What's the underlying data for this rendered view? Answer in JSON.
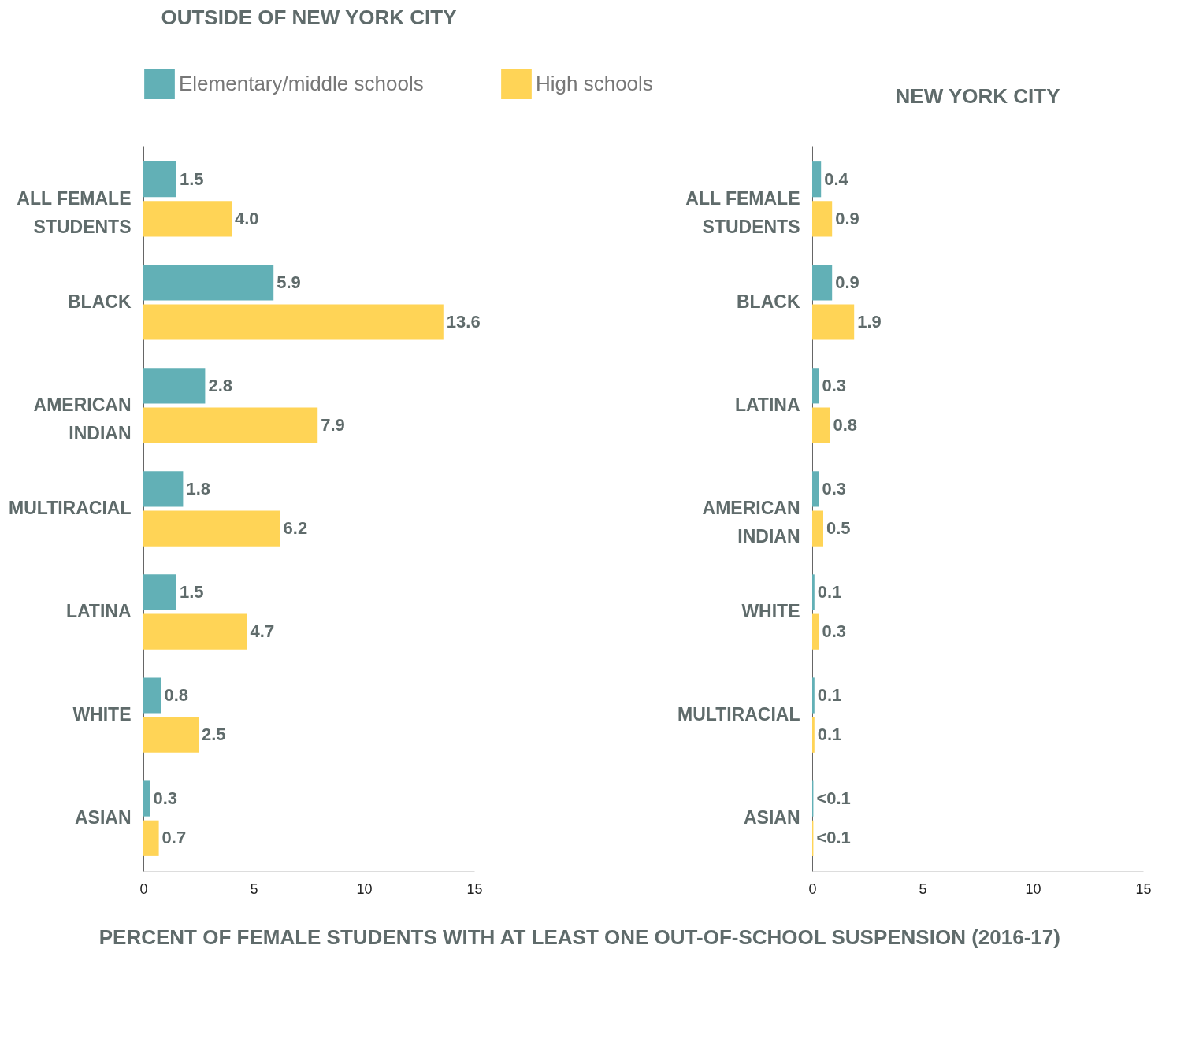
{
  "chart_data": [
    {
      "type": "bar",
      "orientation": "horizontal",
      "title": "OUTSIDE OF NEW YORK CITY",
      "xlabel": "PERCENT OF FEMALE STUDENTS WITH AT LEAST ONE OUT-OF-SCHOOL SUSPENSION (2016-17)",
      "categories": [
        "ALL FEMALE STUDENTS",
        "BLACK",
        "AMERICAN INDIAN",
        "MULTIRACIAL",
        "LATINA",
        "WHITE",
        "ASIAN"
      ],
      "xlim": [
        0,
        15
      ],
      "xticks": [
        0,
        5,
        10,
        15
      ],
      "legend": "top",
      "series": [
        {
          "name": "Elementary/middle  schools",
          "color": "#62b0b6",
          "values": [
            1.5,
            5.9,
            2.8,
            1.8,
            1.5,
            0.8,
            0.3
          ],
          "value_labels": [
            "1.5",
            "5.9",
            "2.8",
            "1.8",
            "1.5",
            "0.8",
            "0.3"
          ]
        },
        {
          "name": "High schools",
          "color": "#ffd456",
          "values": [
            4.0,
            13.6,
            7.9,
            6.2,
            4.7,
            2.5,
            0.7
          ],
          "value_labels": [
            "4.0",
            "13.6",
            "7.9",
            "6.2",
            "4.7",
            "2.5",
            "0.7"
          ]
        }
      ]
    },
    {
      "type": "bar",
      "orientation": "horizontal",
      "title": "NEW YORK CITY",
      "categories": [
        "ALL FEMALE STUDENTS",
        "BLACK",
        "LATINA",
        "AMERICAN INDIAN",
        "WHITE",
        "MULTIRACIAL",
        "ASIAN"
      ],
      "xlim": [
        0,
        15
      ],
      "xticks": [
        0,
        5,
        10,
        15
      ],
      "series": [
        {
          "color": "#62b0b6",
          "values": [
            0.4,
            0.9,
            0.3,
            0.3,
            0.1,
            0.1,
            0.05
          ],
          "value_labels": [
            "0.4",
            "0.9",
            "0.3",
            "0.3",
            "0.1",
            "0.1",
            "<0.1"
          ]
        },
        {
          "color": "#ffd456",
          "values": [
            0.9,
            1.9,
            0.8,
            0.5,
            0.3,
            0.1,
            0.05
          ],
          "value_labels": [
            "0.9",
            "1.9",
            "0.8",
            "0.5",
            "0.3",
            "0.1",
            "<0.1"
          ]
        }
      ]
    }
  ]
}
